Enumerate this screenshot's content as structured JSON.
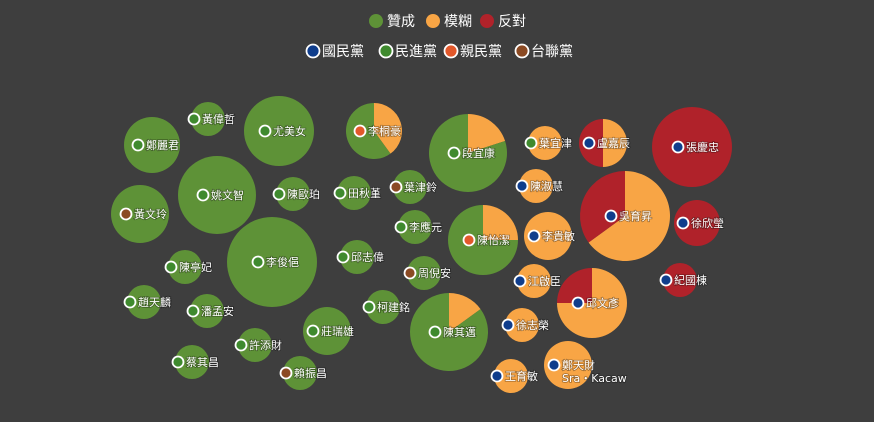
{
  "colors": {
    "agree": "#5e9237",
    "vague": "#f8a545",
    "oppose": "#b0222a",
    "party_kmt": "#0f3d8c",
    "party_dpp": "#3f8a2e",
    "party_pfp": "#e2582b",
    "party_tsu": "#8b4a23"
  },
  "legend_stance": [
    {
      "key": "agree",
      "label": "贊成"
    },
    {
      "key": "vague",
      "label": "模糊"
    },
    {
      "key": "oppose",
      "label": "反對"
    }
  ],
  "legend_party": [
    {
      "key": "party_kmt",
      "label": "國民黨"
    },
    {
      "key": "party_dpp",
      "label": "民進黨"
    },
    {
      "key": "party_pfp",
      "label": "親民黨"
    },
    {
      "key": "party_tsu",
      "label": "台聯黨"
    }
  ],
  "chart_data": {
    "type": "bubble",
    "description_note": "",
    "series_keys": [
      "agree",
      "vague",
      "oppose"
    ],
    "nodes": [
      {
        "name": "黃偉哲",
        "party": "party_dpp",
        "size": 1,
        "agree": 1,
        "vague": 0,
        "oppose": 0
      },
      {
        "name": "尤美女",
        "party": "party_dpp",
        "size": 3,
        "agree": 1,
        "vague": 0,
        "oppose": 0
      },
      {
        "name": "鄭麗君",
        "party": "party_dpp",
        "size": 2,
        "agree": 1,
        "vague": 0,
        "oppose": 0
      },
      {
        "name": "李桐豪",
        "party": "party_pfp",
        "size": 2,
        "agree": 0.6,
        "vague": 0.4,
        "oppose": 0
      },
      {
        "name": "段宜康",
        "party": "party_dpp",
        "size": 4,
        "agree": 0.8,
        "vague": 0.2,
        "oppose": 0
      },
      {
        "name": "葉宜津",
        "party": "party_dpp",
        "size": 1,
        "agree": 0,
        "vague": 1,
        "oppose": 0
      },
      {
        "name": "盧嘉辰",
        "party": "party_kmt",
        "size": 1.5,
        "agree": 0,
        "vague": 0.5,
        "oppose": 0.5
      },
      {
        "name": "張慶忠",
        "party": "party_kmt",
        "size": 4,
        "agree": 0,
        "vague": 0,
        "oppose": 1
      },
      {
        "name": "姚文智",
        "party": "party_dpp",
        "size": 4,
        "agree": 1,
        "vague": 0,
        "oppose": 0
      },
      {
        "name": "陳歐珀",
        "party": "party_dpp",
        "size": 1,
        "agree": 1,
        "vague": 0,
        "oppose": 0
      },
      {
        "name": "田秋堇",
        "party": "party_dpp",
        "size": 1,
        "agree": 1,
        "vague": 0,
        "oppose": 0
      },
      {
        "name": "葉津鈴",
        "party": "party_tsu",
        "size": 1,
        "agree": 1,
        "vague": 0,
        "oppose": 0
      },
      {
        "name": "陳淑慧",
        "party": "party_kmt",
        "size": 1,
        "agree": 0,
        "vague": 1,
        "oppose": 0
      },
      {
        "name": "吳育昇",
        "party": "party_kmt",
        "size": 5,
        "agree": 0,
        "vague": 0.65,
        "oppose": 0.35
      },
      {
        "name": "徐欣瑩",
        "party": "party_kmt",
        "size": 1,
        "agree": 0,
        "vague": 0,
        "oppose": 1
      },
      {
        "name": "黃文玲",
        "party": "party_tsu",
        "size": 2,
        "agree": 1,
        "vague": 0,
        "oppose": 0
      },
      {
        "name": "李應元",
        "party": "party_dpp",
        "size": 1,
        "agree": 1,
        "vague": 0,
        "oppose": 0
      },
      {
        "name": "陳怡潔",
        "party": "party_pfp",
        "size": 3,
        "agree": 0.75,
        "vague": 0.25,
        "oppose": 0
      },
      {
        "name": "李貴敏",
        "party": "party_kmt",
        "size": 1.5,
        "agree": 0,
        "vague": 1,
        "oppose": 0
      },
      {
        "name": "陳亭妃",
        "party": "party_dpp",
        "size": 1,
        "agree": 1,
        "vague": 0,
        "oppose": 0
      },
      {
        "name": "李俊俋",
        "party": "party_dpp",
        "size": 5,
        "agree": 1,
        "vague": 0,
        "oppose": 0
      },
      {
        "name": "邱志偉",
        "party": "party_dpp",
        "size": 1,
        "agree": 1,
        "vague": 0,
        "oppose": 0
      },
      {
        "name": "周倪安",
        "party": "party_tsu",
        "size": 1,
        "agree": 1,
        "vague": 0,
        "oppose": 0
      },
      {
        "name": "江啟臣",
        "party": "party_kmt",
        "size": 1,
        "agree": 0,
        "vague": 1,
        "oppose": 0
      },
      {
        "name": "紀國棟",
        "party": "party_kmt",
        "size": 1,
        "agree": 0,
        "vague": 0,
        "oppose": 1
      },
      {
        "name": "趙天麟",
        "party": "party_dpp",
        "size": 1,
        "agree": 1,
        "vague": 0,
        "oppose": 0
      },
      {
        "name": "潘孟安",
        "party": "party_dpp",
        "size": 1,
        "agree": 1,
        "vague": 0,
        "oppose": 0
      },
      {
        "name": "柯建銘",
        "party": "party_dpp",
        "size": 1,
        "agree": 1,
        "vague": 0,
        "oppose": 0
      },
      {
        "name": "邱文彥",
        "party": "party_kmt",
        "size": 3,
        "agree": 0,
        "vague": 0.75,
        "oppose": 0.25
      },
      {
        "name": "莊瑞雄",
        "party": "party_dpp",
        "size": 1.5,
        "agree": 1,
        "vague": 0,
        "oppose": 0
      },
      {
        "name": "陳其邁",
        "party": "party_dpp",
        "size": 4,
        "agree": 0.85,
        "vague": 0.15,
        "oppose": 0
      },
      {
        "name": "徐志榮",
        "party": "party_kmt",
        "size": 1,
        "agree": 0,
        "vague": 1,
        "oppose": 0
      },
      {
        "name": "許添財",
        "party": "party_dpp",
        "size": 1,
        "agree": 1,
        "vague": 0,
        "oppose": 0
      },
      {
        "name": "蔡其昌",
        "party": "party_dpp",
        "size": 1,
        "agree": 1,
        "vague": 0,
        "oppose": 0
      },
      {
        "name": "賴振昌",
        "party": "party_tsu",
        "size": 1,
        "agree": 1,
        "vague": 0,
        "oppose": 0
      },
      {
        "name": "鄭天財",
        "name2": "Sra・Kacaw",
        "party": "party_kmt",
        "size": 1.5,
        "agree": 0,
        "vague": 1,
        "oppose": 0
      },
      {
        "name": "王育敏",
        "party": "party_kmt",
        "size": 1,
        "agree": 0,
        "vague": 1,
        "oppose": 0
      }
    ]
  }
}
